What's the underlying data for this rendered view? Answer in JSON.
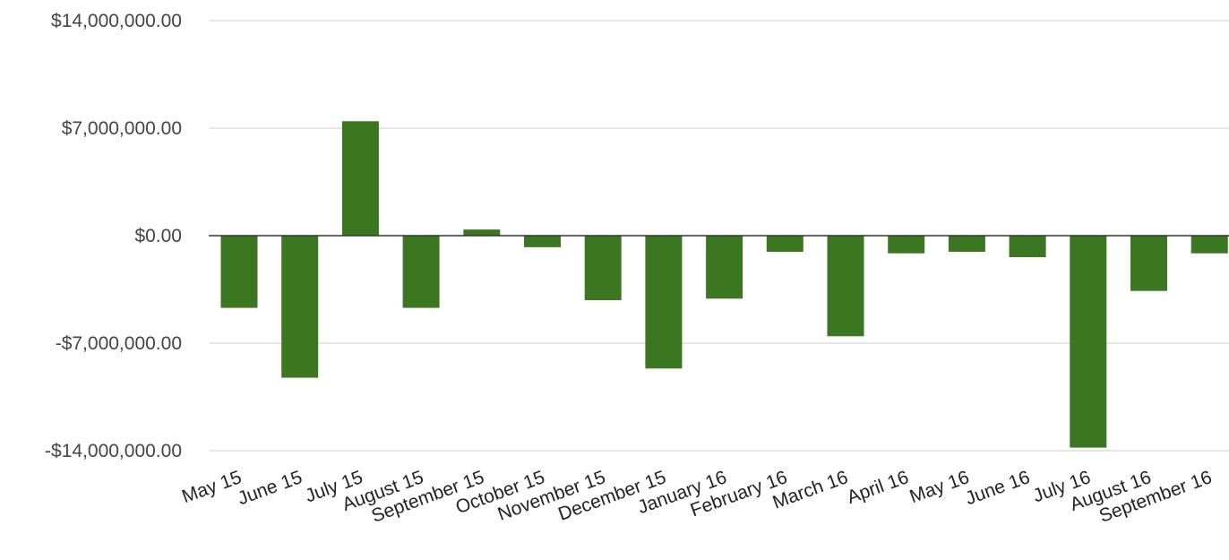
{
  "chart_data": {
    "type": "bar",
    "title": "",
    "xlabel": "",
    "ylabel": "",
    "ylim": [
      -14000000,
      14000000
    ],
    "y_ticks": [
      14000000,
      7000000,
      0,
      -7000000,
      -14000000
    ],
    "y_tick_labels": [
      "$14,000,000.00",
      "$7,000,000.00",
      "$0.00",
      "-$7,000,000.00",
      "-$14,000,000.00"
    ],
    "grid": true,
    "legend": "none",
    "bar_color": "#3a7720",
    "categories": [
      "May 15",
      "June 15",
      "July 15",
      "August 15",
      "September 15",
      "October 15",
      "November 15",
      "December 15",
      "January 16",
      "February 16",
      "March 16",
      "April 16",
      "May 16",
      "June 16",
      "July 16",
      "August 16",
      "September 16"
    ],
    "values": [
      -4700000,
      -9250000,
      7450000,
      -4700000,
      400000,
      -750000,
      -4200000,
      -8650000,
      -4100000,
      -1050000,
      -6550000,
      -1150000,
      -1050000,
      -1400000,
      -13800000,
      -3600000,
      -1150000
    ]
  }
}
